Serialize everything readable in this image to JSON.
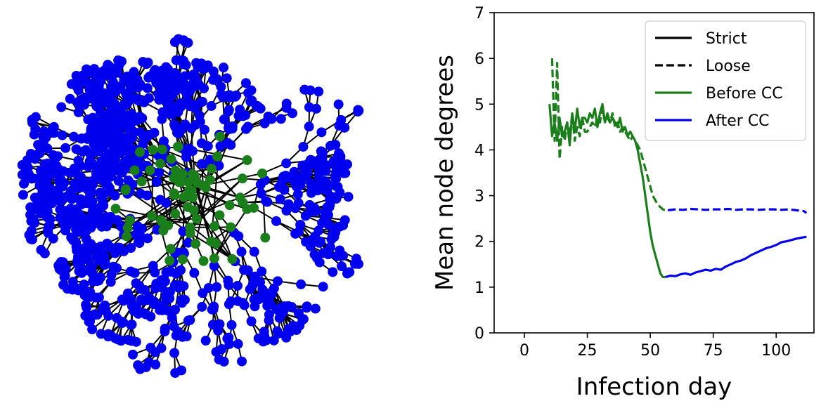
{
  "chart_data": [
    {
      "type": "network",
      "colors": {
        "node_before": "#1a7f1a",
        "node_after": "#0000ee",
        "edge": "#000000"
      },
      "components": [
        {
          "label": "Before CC",
          "color": "#1a7f1a",
          "description_count": 70
        },
        {
          "label": "After CC",
          "color": "#0000ee",
          "description_count": 380
        }
      ]
    },
    {
      "type": "line",
      "xlabel": "Infection day",
      "ylabel": "Mean node degrees",
      "xlim": [
        -12,
        115
      ],
      "ylim": [
        0,
        7
      ],
      "xticks": [
        0,
        25,
        50,
        75,
        100
      ],
      "yticks": [
        0,
        1,
        2,
        3,
        4,
        5,
        6,
        7
      ],
      "grid": false,
      "legend": {
        "placement": "top-right",
        "entries": [
          {
            "label": "Strict",
            "color": "#000000",
            "dash": "solid"
          },
          {
            "label": "Loose",
            "color": "#000000",
            "dash": "dashed"
          },
          {
            "label": "Before CC",
            "color": "#1a7f1a",
            "dash": "solid"
          },
          {
            "label": "After CC",
            "color": "#0000ee",
            "dash": "solid"
          }
        ]
      },
      "series": [
        {
          "name": "Strict / Before CC",
          "color": "#1a7f1a",
          "dash": "solid",
          "x": [
            10,
            11,
            12,
            13,
            14,
            15,
            16,
            17,
            18,
            19,
            20,
            21,
            22,
            23,
            24,
            25,
            26,
            27,
            28,
            29,
            30,
            31,
            32,
            33,
            34,
            35,
            36,
            37,
            38,
            39,
            40,
            41,
            42,
            43,
            44,
            45,
            46,
            47,
            48,
            49,
            50,
            51,
            52,
            53,
            54,
            55,
            56
          ],
          "y": [
            5.0,
            4.3,
            4.6,
            4.2,
            4.7,
            4.3,
            4.4,
            4.6,
            4.1,
            4.8,
            4.4,
            4.9,
            4.5,
            4.7,
            4.7,
            4.6,
            4.8,
            4.7,
            4.9,
            4.5,
            4.8,
            5.0,
            4.6,
            4.8,
            4.6,
            4.7,
            4.6,
            4.5,
            4.7,
            4.4,
            4.5,
            4.3,
            4.4,
            4.3,
            4.2,
            4.0,
            3.7,
            3.4,
            3.0,
            2.6,
            2.2,
            1.9,
            1.7,
            1.5,
            1.3,
            1.22,
            1.22
          ]
        },
        {
          "name": "Strict / After CC",
          "color": "#0000ee",
          "dash": "solid",
          "x": [
            56,
            58,
            60,
            62,
            64,
            66,
            68,
            70,
            72,
            74,
            76,
            78,
            80,
            82,
            84,
            86,
            88,
            90,
            92,
            94,
            96,
            98,
            100,
            102,
            104,
            106,
            108,
            110,
            112
          ],
          "y": [
            1.22,
            1.25,
            1.24,
            1.28,
            1.3,
            1.27,
            1.32,
            1.35,
            1.38,
            1.36,
            1.4,
            1.38,
            1.45,
            1.5,
            1.55,
            1.58,
            1.63,
            1.7,
            1.75,
            1.8,
            1.85,
            1.88,
            1.92,
            1.98,
            2.0,
            2.03,
            2.06,
            2.08,
            2.1
          ]
        },
        {
          "name": "Loose / Before CC",
          "color": "#1a7f1a",
          "dash": "dashed",
          "x": [
            11,
            12,
            13,
            14,
            15,
            16,
            17,
            18,
            19,
            20,
            21,
            22,
            23,
            24,
            25,
            26,
            27,
            28,
            29,
            30,
            31,
            32,
            33,
            34,
            35,
            36,
            37,
            38,
            39,
            40,
            41,
            42,
            43,
            44,
            45,
            46,
            47,
            48,
            49,
            50,
            51,
            52,
            53,
            54,
            55,
            56,
            57
          ],
          "y": [
            6.0,
            4.2,
            5.9,
            3.8,
            4.5,
            4.2,
            4.6,
            4.3,
            4.8,
            4.2,
            4.5,
            4.3,
            4.7,
            4.4,
            4.4,
            4.5,
            4.6,
            4.5,
            4.7,
            4.6,
            4.9,
            4.6,
            4.7,
            4.6,
            4.8,
            4.5,
            4.6,
            4.4,
            4.5,
            4.4,
            4.3,
            4.2,
            4.3,
            4.2,
            4.1,
            4.0,
            3.8,
            3.6,
            3.4,
            3.2,
            3.0,
            2.9,
            2.8,
            2.75,
            2.7,
            2.68,
            2.68
          ]
        },
        {
          "name": "Loose / After CC",
          "color": "#0000ee",
          "dash": "dashed",
          "x": [
            57,
            60,
            63,
            66,
            69,
            72,
            75,
            78,
            81,
            84,
            87,
            90,
            93,
            96,
            99,
            102,
            105,
            108,
            111,
            112
          ],
          "y": [
            2.68,
            2.7,
            2.69,
            2.71,
            2.7,
            2.69,
            2.7,
            2.7,
            2.71,
            2.69,
            2.7,
            2.7,
            2.69,
            2.7,
            2.7,
            2.69,
            2.7,
            2.68,
            2.66,
            2.62
          ]
        }
      ]
    }
  ]
}
